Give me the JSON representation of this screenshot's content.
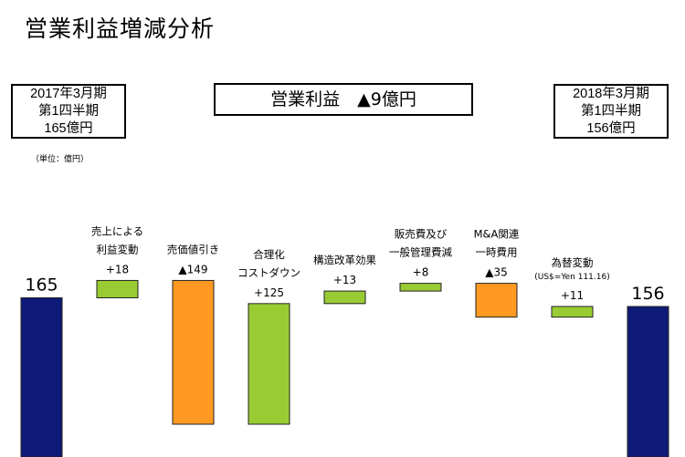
{
  "title": "営業利益増減分析",
  "start_box": {
    "line1": "2017年3月期",
    "line2": "第1四半期",
    "line3": "165億円"
  },
  "end_box": {
    "line1": "2018年3月期",
    "line2": "第1四半期",
    "line3": "156億円"
  },
  "headline": "営業利益　▲9億円",
  "unit_note": "（単位：億円）",
  "colors": {
    "total": "#0d1a78",
    "increase": "#99cc33",
    "decrease": "#ff9922",
    "edge": "#222222"
  },
  "chart_data": {
    "type": "bar",
    "subtype": "waterfall",
    "categories": [
      {
        "id": "start",
        "label_lines": [],
        "value_label": "165"
      },
      {
        "id": "sales",
        "label_lines": [
          "売上による",
          "利益変動"
        ],
        "value_label": "+18"
      },
      {
        "id": "cogs",
        "label_lines": [
          "売価値引き"
        ],
        "value_label": "▲149"
      },
      {
        "id": "rationalization",
        "label_lines": [
          "合理化",
          "コストダウン"
        ],
        "value_label": "+125"
      },
      {
        "id": "restructuring",
        "label_lines": [
          "構造改革効果"
        ],
        "value_label": "+13"
      },
      {
        "id": "sga",
        "label_lines": [
          "販売費及び",
          "一般管理費減"
        ],
        "value_label": "+8"
      },
      {
        "id": "ma",
        "label_lines": [
          "M&A関連",
          "一時費用"
        ],
        "value_label": "▲35"
      },
      {
        "id": "fx",
        "label_lines": [
          "為替変動",
          "(US$=Yen 111.16)"
        ],
        "value_label": "+11"
      },
      {
        "id": "end",
        "label_lines": [],
        "value_label": "156"
      }
    ],
    "values": [
      165,
      18,
      -149,
      125,
      13,
      8,
      -35,
      11,
      156
    ],
    "kinds": [
      "total",
      "increase",
      "decrease",
      "increase",
      "increase",
      "increase",
      "decrease",
      "increase",
      "total"
    ],
    "grid": false,
    "legend": "none"
  }
}
